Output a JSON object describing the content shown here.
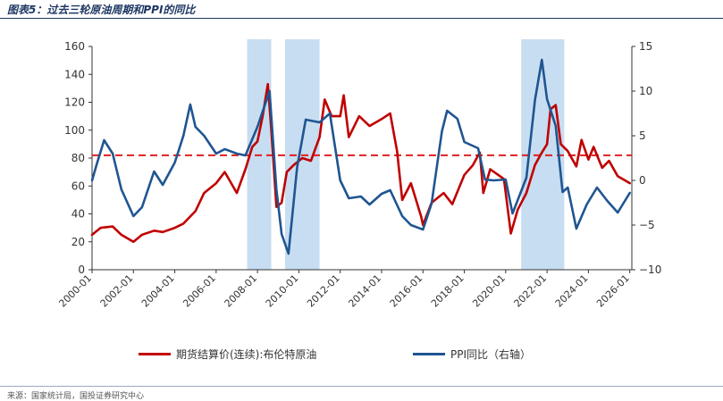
{
  "page": {
    "title": "图表5：过去三轮原油周期和PPI的同比",
    "source": "来源：国家统计局，国投证券研究中心"
  },
  "colors": {
    "oil": "#c00000",
    "ppi": "#1f5591",
    "band": "#bdd7ee",
    "axis": "#333333",
    "refline": "#e02020"
  },
  "chart_data": {
    "type": "line",
    "x": [
      "2000-01",
      "2002-01",
      "2004-01",
      "2006-01",
      "2008-01",
      "2010-01",
      "2012-01",
      "2014-01",
      "2016-01",
      "2018-01",
      "2020-01",
      "2022-01",
      "2024-01",
      "2026-01"
    ],
    "ylim": [
      0,
      160
    ],
    "y_ticks": [
      0,
      20,
      40,
      60,
      80,
      100,
      120,
      140,
      160
    ],
    "y2lim": [
      -10,
      15
    ],
    "y2_ticks": [
      -10,
      -5,
      0,
      5,
      10,
      15
    ],
    "reference_line": {
      "axis": "left",
      "value": 82,
      "style": "dashed"
    },
    "shaded_periods": [
      [
        "2007-07",
        "2008-09"
      ],
      [
        "2009-05",
        "2011-01"
      ],
      [
        "2020-10",
        "2022-11"
      ]
    ],
    "series": [
      {
        "name": "期货结算价(连续):布伦特原油",
        "axis": "left",
        "points": [
          [
            "2000-01",
            25
          ],
          [
            "2000-06",
            30
          ],
          [
            "2001-01",
            31
          ],
          [
            "2001-06",
            25
          ],
          [
            "2002-01",
            20
          ],
          [
            "2002-06",
            25
          ],
          [
            "2003-01",
            28
          ],
          [
            "2003-06",
            27
          ],
          [
            "2004-01",
            30
          ],
          [
            "2004-06",
            33
          ],
          [
            "2005-01",
            42
          ],
          [
            "2005-06",
            55
          ],
          [
            "2006-01",
            62
          ],
          [
            "2006-06",
            70
          ],
          [
            "2007-01",
            55
          ],
          [
            "2007-06",
            72
          ],
          [
            "2007-10",
            88
          ],
          [
            "2008-01",
            92
          ],
          [
            "2008-04",
            110
          ],
          [
            "2008-07",
            133
          ],
          [
            "2008-09",
            100
          ],
          [
            "2008-12",
            45
          ],
          [
            "2009-03",
            48
          ],
          [
            "2009-06",
            70
          ],
          [
            "2009-10",
            75
          ],
          [
            "2010-03",
            80
          ],
          [
            "2010-08",
            78
          ],
          [
            "2011-01",
            95
          ],
          [
            "2011-04",
            122
          ],
          [
            "2011-08",
            110
          ],
          [
            "2012-01",
            110
          ],
          [
            "2012-03",
            125
          ],
          [
            "2012-06",
            95
          ],
          [
            "2012-12",
            110
          ],
          [
            "2013-06",
            103
          ],
          [
            "2014-01",
            108
          ],
          [
            "2014-06",
            112
          ],
          [
            "2014-10",
            85
          ],
          [
            "2015-01",
            50
          ],
          [
            "2015-06",
            62
          ],
          [
            "2015-12",
            38
          ],
          [
            "2016-01",
            32
          ],
          [
            "2016-06",
            48
          ],
          [
            "2017-01",
            55
          ],
          [
            "2017-06",
            47
          ],
          [
            "2018-01",
            68
          ],
          [
            "2018-06",
            75
          ],
          [
            "2018-10",
            84
          ],
          [
            "2018-12",
            55
          ],
          [
            "2019-04",
            72
          ],
          [
            "2019-12",
            65
          ],
          [
            "2020-04",
            26
          ],
          [
            "2020-08",
            43
          ],
          [
            "2021-01",
            55
          ],
          [
            "2021-06",
            75
          ],
          [
            "2021-10",
            84
          ],
          [
            "2022-01",
            90
          ],
          [
            "2022-03",
            115
          ],
          [
            "2022-06",
            118
          ],
          [
            "2022-09",
            90
          ],
          [
            "2023-01",
            85
          ],
          [
            "2023-06",
            74
          ],
          [
            "2023-09",
            93
          ],
          [
            "2024-01",
            79
          ],
          [
            "2024-04",
            88
          ],
          [
            "2024-09",
            73
          ],
          [
            "2025-01",
            78
          ],
          [
            "2025-06",
            67
          ],
          [
            "2026-01",
            62
          ]
        ]
      },
      {
        "name": "PPI同比（右轴）",
        "axis": "right",
        "points": [
          [
            "2000-01",
            0
          ],
          [
            "2000-04",
            2
          ],
          [
            "2000-08",
            4.5
          ],
          [
            "2001-01",
            3
          ],
          [
            "2001-06",
            -1
          ],
          [
            "2002-01",
            -4
          ],
          [
            "2002-06",
            -3
          ],
          [
            "2003-01",
            1
          ],
          [
            "2003-06",
            -0.5
          ],
          [
            "2004-01",
            2
          ],
          [
            "2004-06",
            5
          ],
          [
            "2004-10",
            8.5
          ],
          [
            "2005-01",
            6
          ],
          [
            "2005-06",
            5
          ],
          [
            "2006-01",
            3
          ],
          [
            "2006-06",
            3.5
          ],
          [
            "2007-01",
            3
          ],
          [
            "2007-06",
            2.8
          ],
          [
            "2008-01",
            6
          ],
          [
            "2008-08",
            10
          ],
          [
            "2008-12",
            -1
          ],
          [
            "2009-03",
            -6
          ],
          [
            "2009-07",
            -8.2
          ],
          [
            "2009-12",
            1.5
          ],
          [
            "2010-05",
            6.8
          ],
          [
            "2011-01",
            6.5
          ],
          [
            "2011-07",
            7.5
          ],
          [
            "2012-01",
            0
          ],
          [
            "2012-06",
            -2
          ],
          [
            "2013-01",
            -1.8
          ],
          [
            "2013-06",
            -2.7
          ],
          [
            "2014-01",
            -1.5
          ],
          [
            "2014-06",
            -1.1
          ],
          [
            "2015-01",
            -4
          ],
          [
            "2015-06",
            -5
          ],
          [
            "2016-01",
            -5.5
          ],
          [
            "2016-06",
            -2.6
          ],
          [
            "2016-12",
            5.5
          ],
          [
            "2017-03",
            7.8
          ],
          [
            "2017-09",
            6.9
          ],
          [
            "2018-01",
            4.3
          ],
          [
            "2018-09",
            3.6
          ],
          [
            "2019-01",
            0.1
          ],
          [
            "2019-06",
            0
          ],
          [
            "2020-01",
            0.1
          ],
          [
            "2020-05",
            -3.7
          ],
          [
            "2021-01",
            0.3
          ],
          [
            "2021-06",
            9
          ],
          [
            "2021-10",
            13.5
          ],
          [
            "2022-01",
            9.1
          ],
          [
            "2022-06",
            6.1
          ],
          [
            "2022-10",
            -1.3
          ],
          [
            "2023-01",
            -0.8
          ],
          [
            "2023-06",
            -5.4
          ],
          [
            "2023-12",
            -2.7
          ],
          [
            "2024-06",
            -0.8
          ],
          [
            "2024-12",
            -2.3
          ],
          [
            "2025-06",
            -3.6
          ],
          [
            "2026-01",
            -1.4
          ]
        ]
      }
    ]
  },
  "legend": {
    "oil_label": "期货结算价(连续):布伦特原油",
    "ppi_label": "PPI同比（右轴）"
  }
}
